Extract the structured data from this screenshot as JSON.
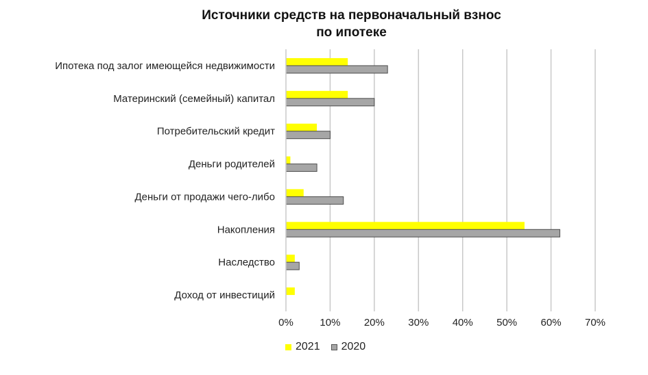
{
  "chart_data": {
    "type": "bar",
    "orientation": "horizontal",
    "title_lines": [
      "Источники средств на первоначальный взнос",
      "по ипотеке"
    ],
    "categories": [
      "Ипотека под залог имеющейся недвижимости",
      "Материнский (семейный) капитал",
      "Потребительский кредит",
      "Деньги родителей",
      "Деньги от продажи чего-либо",
      "Накопления",
      "Наследство",
      "Доход от инвестиций"
    ],
    "series": [
      {
        "name": "2021",
        "color": "#ffff00",
        "values": [
          14,
          14,
          7,
          1,
          4,
          54,
          2,
          2
        ]
      },
      {
        "name": "2020",
        "color": "#a6a6a6",
        "values": [
          23,
          20,
          10,
          7,
          13,
          62,
          3,
          0
        ]
      }
    ],
    "xlim": [
      0,
      70
    ],
    "xticks": [
      "0%",
      "10%",
      "20%",
      "30%",
      "40%",
      "50%",
      "60%",
      "70%"
    ],
    "grid": true,
    "legend_position": "bottom"
  }
}
